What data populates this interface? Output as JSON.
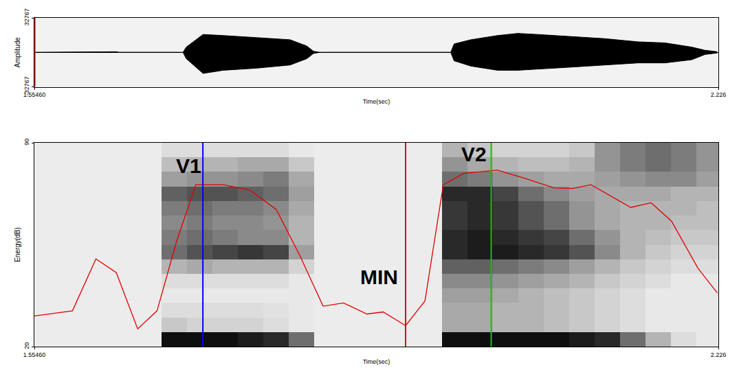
{
  "chart_data": [
    {
      "type": "area",
      "y_label": "Amplitude",
      "x_label": "Time(sec)",
      "x": [
        1.5546,
        1.6216,
        1.6348,
        1.638,
        1.7005,
        1.7037,
        1.7202,
        1.7399,
        1.7727,
        1.8056,
        1.822,
        1.8286,
        1.8352,
        1.9633,
        1.9666,
        1.983,
        2.0093,
        2.029,
        2.0487,
        2.0816,
        2.1144,
        2.1473,
        2.1735,
        2.1998,
        2.2129,
        2.2248
      ],
      "upper": [
        0,
        600,
        600,
        0,
        0,
        5000,
        17000,
        16000,
        14000,
        12000,
        6000,
        1000,
        0,
        0,
        8000,
        12000,
        16000,
        18000,
        17000,
        15000,
        13000,
        10000,
        9000,
        5000,
        2000,
        600
      ],
      "lower": [
        0,
        0,
        0,
        0,
        0,
        -6000,
        -20000,
        -17000,
        -15000,
        -12000,
        -6000,
        -1000,
        0,
        0,
        -8000,
        -13000,
        -17000,
        -17000,
        -16000,
        -14000,
        -12000,
        -10000,
        -10000,
        -7000,
        -2000,
        -600
      ],
      "color": "#000000",
      "xlim": [
        1.5546,
        2.226
      ],
      "xticks": [
        {
          "value": 1.5546,
          "label": "1.55460"
        },
        {
          "value": 2.226,
          "label": "2.226"
        }
      ],
      "ylim": [
        -32767,
        32767
      ],
      "yticks": [
        -32767,
        32767
      ],
      "cursor": {
        "x": 1.5546,
        "color": "#cc0000"
      }
    },
    {
      "type": "spectrogram",
      "y_label": "Energy(dB)",
      "x_label": "Time(sec)",
      "xlim": [
        1.5546,
        2.226
      ],
      "xticks": [
        {
          "value": 1.5546,
          "label": "1.55460"
        },
        {
          "value": 2.226,
          "label": "2.226"
        }
      ],
      "ylim": [
        20,
        90
      ],
      "yticks": [
        20,
        90
      ],
      "heatmap": {
        "x": [
          1.5671,
          1.5921,
          1.6171,
          1.6421,
          1.6671,
          1.6921,
          1.7171,
          1.7421,
          1.7671,
          1.7921,
          1.8171,
          1.8421,
          1.8671,
          1.8921,
          1.9171,
          1.9421,
          1.9671,
          1.9921,
          2.0171,
          2.0421,
          2.0671,
          2.0921,
          2.1171,
          2.1421,
          2.1671,
          2.1921,
          2.2171
        ],
        "y": [
          22.5,
          27.5,
          32.5,
          37.5,
          42.5,
          47.5,
          52.5,
          57.5,
          62.5,
          67.5,
          72.5,
          77.5,
          82.5,
          87.5
        ],
        "zlim": [
          0,
          1
        ],
        "z": [
          [
            0.03,
            0.03,
            0.03,
            0.03,
            0.03,
            0.95,
            0.95,
            0.95,
            0.9,
            0.85,
            0.6,
            0.03,
            0.03,
            0.03,
            0.03,
            0.03,
            0.95,
            0.95,
            0.95,
            0.95,
            0.95,
            0.9,
            0.85,
            0.6,
            0.3,
            0.1,
            0.05
          ],
          [
            0.03,
            0.03,
            0.03,
            0.03,
            0.03,
            0.2,
            0.15,
            0.15,
            0.15,
            0.1,
            0.05,
            0.03,
            0.03,
            0.03,
            0.03,
            0.03,
            0.35,
            0.35,
            0.3,
            0.3,
            0.25,
            0.2,
            0.15,
            0.1,
            0.05,
            0.05,
            0.05
          ],
          [
            0.03,
            0.03,
            0.03,
            0.03,
            0.03,
            0.1,
            0.1,
            0.1,
            0.1,
            0.08,
            0.05,
            0.03,
            0.03,
            0.03,
            0.03,
            0.03,
            0.35,
            0.35,
            0.3,
            0.3,
            0.25,
            0.2,
            0.15,
            0.1,
            0.05,
            0.05,
            0.05
          ],
          [
            0.03,
            0.03,
            0.03,
            0.03,
            0.03,
            0.05,
            0.05,
            0.05,
            0.05,
            0.05,
            0.05,
            0.03,
            0.03,
            0.03,
            0.03,
            0.03,
            0.4,
            0.4,
            0.35,
            0.3,
            0.25,
            0.2,
            0.15,
            0.1,
            0.05,
            0.05,
            0.05
          ],
          [
            0.03,
            0.03,
            0.03,
            0.03,
            0.03,
            0.1,
            0.1,
            0.1,
            0.1,
            0.1,
            0.05,
            0.03,
            0.03,
            0.03,
            0.03,
            0.03,
            0.5,
            0.5,
            0.45,
            0.4,
            0.35,
            0.3,
            0.2,
            0.15,
            0.1,
            0.05,
            0.05
          ],
          [
            0.03,
            0.03,
            0.03,
            0.03,
            0.03,
            0.3,
            0.35,
            0.3,
            0.3,
            0.3,
            0.15,
            0.03,
            0.03,
            0.03,
            0.03,
            0.03,
            0.65,
            0.65,
            0.6,
            0.55,
            0.5,
            0.4,
            0.3,
            0.2,
            0.15,
            0.1,
            0.1
          ],
          [
            0.03,
            0.03,
            0.03,
            0.03,
            0.03,
            0.6,
            0.7,
            0.75,
            0.8,
            0.75,
            0.4,
            0.03,
            0.03,
            0.03,
            0.03,
            0.03,
            0.85,
            0.9,
            0.9,
            0.85,
            0.8,
            0.7,
            0.5,
            0.3,
            0.2,
            0.15,
            0.15
          ],
          [
            0.03,
            0.03,
            0.03,
            0.03,
            0.03,
            0.55,
            0.6,
            0.55,
            0.5,
            0.5,
            0.3,
            0.03,
            0.03,
            0.03,
            0.03,
            0.03,
            0.85,
            0.9,
            0.85,
            0.8,
            0.75,
            0.6,
            0.45,
            0.3,
            0.25,
            0.2,
            0.2
          ],
          [
            0.03,
            0.03,
            0.03,
            0.03,
            0.03,
            0.5,
            0.55,
            0.5,
            0.5,
            0.45,
            0.3,
            0.03,
            0.03,
            0.03,
            0.03,
            0.03,
            0.8,
            0.85,
            0.8,
            0.7,
            0.6,
            0.45,
            0.35,
            0.3,
            0.3,
            0.25,
            0.25
          ],
          [
            0.03,
            0.03,
            0.03,
            0.03,
            0.03,
            0.55,
            0.6,
            0.55,
            0.55,
            0.5,
            0.35,
            0.03,
            0.03,
            0.03,
            0.03,
            0.03,
            0.8,
            0.85,
            0.8,
            0.7,
            0.6,
            0.45,
            0.35,
            0.3,
            0.3,
            0.3,
            0.25
          ],
          [
            0.03,
            0.03,
            0.03,
            0.03,
            0.03,
            0.65,
            0.7,
            0.7,
            0.65,
            0.6,
            0.4,
            0.03,
            0.03,
            0.03,
            0.03,
            0.03,
            0.85,
            0.85,
            0.75,
            0.6,
            0.5,
            0.4,
            0.35,
            0.35,
            0.35,
            0.3,
            0.3
          ],
          [
            0.03,
            0.03,
            0.03,
            0.03,
            0.03,
            0.4,
            0.45,
            0.45,
            0.5,
            0.55,
            0.35,
            0.03,
            0.03,
            0.03,
            0.03,
            0.03,
            0.6,
            0.55,
            0.45,
            0.4,
            0.35,
            0.35,
            0.4,
            0.45,
            0.5,
            0.5,
            0.4
          ],
          [
            0.03,
            0.03,
            0.03,
            0.03,
            0.03,
            0.25,
            0.3,
            0.3,
            0.35,
            0.35,
            0.2,
            0.03,
            0.03,
            0.03,
            0.03,
            0.03,
            0.45,
            0.35,
            0.3,
            0.25,
            0.25,
            0.3,
            0.45,
            0.55,
            0.6,
            0.55,
            0.45
          ],
          [
            0.03,
            0.03,
            0.03,
            0.03,
            0.03,
            0.1,
            0.1,
            0.1,
            0.1,
            0.1,
            0.05,
            0.03,
            0.03,
            0.03,
            0.03,
            0.03,
            0.3,
            0.2,
            0.15,
            0.15,
            0.15,
            0.2,
            0.45,
            0.55,
            0.6,
            0.55,
            0.45
          ]
        ]
      },
      "energy": {
        "color": "#e00000",
        "x": [
          1.5546,
          1.592,
          1.615,
          1.635,
          1.656,
          1.675,
          1.694,
          1.713,
          1.74,
          1.766,
          1.792,
          1.815,
          1.838,
          1.858,
          1.881,
          1.897,
          1.919,
          1.938,
          1.956,
          1.976,
          2.009,
          2.035,
          2.065,
          2.083,
          2.101,
          2.14,
          2.16,
          2.18,
          2.206,
          2.225
        ],
        "values": [
          30.5,
          32.3,
          50.1,
          45.4,
          26.1,
          32.3,
          55.9,
          75.6,
          75.6,
          73.8,
          67.1,
          51.4,
          33.9,
          35.0,
          31.2,
          31.9,
          27.2,
          35.7,
          75.6,
          79.5,
          80.6,
          77.9,
          74.5,
          74.3,
          75.6,
          67.8,
          69.4,
          63.1,
          46.9,
          38.4
        ]
      },
      "lines": [
        {
          "label": "V1",
          "x": 1.72,
          "color": "#0000ff",
          "label_x": 1.7058,
          "label_y": 82
        },
        {
          "label": "MIN",
          "x": 1.919,
          "color": "#e00000",
          "label_x": 1.893,
          "label_y": 44
        },
        {
          "label": "V2",
          "x": 2.003,
          "color": "#00cc00",
          "label_x": 1.986,
          "label_y": 86
        }
      ]
    }
  ]
}
